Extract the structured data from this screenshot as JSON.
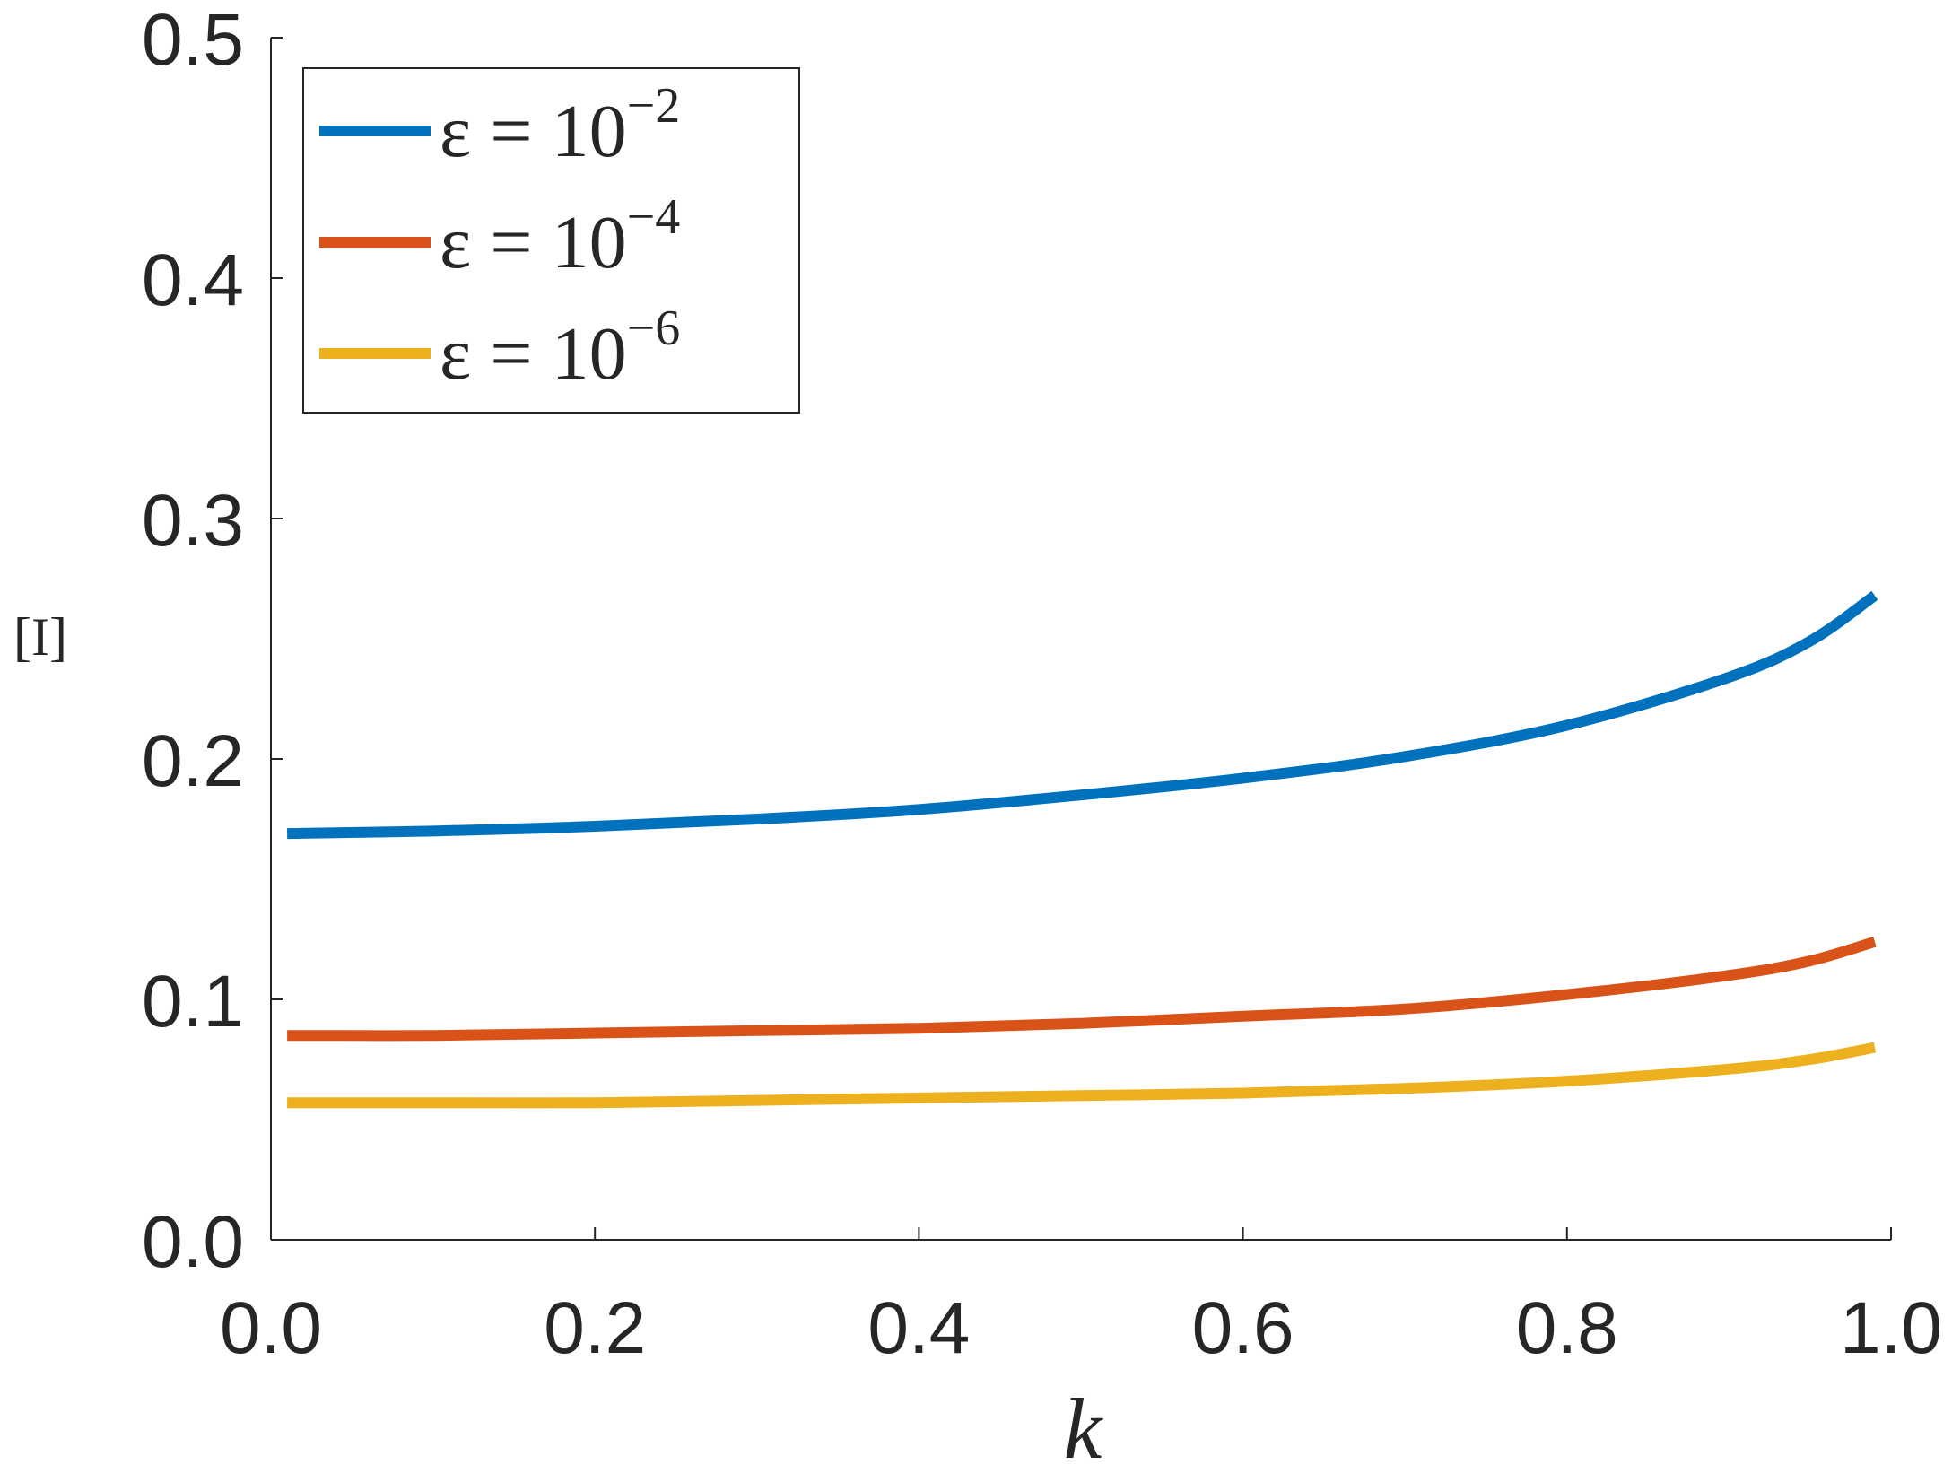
{
  "chart_data": {
    "type": "line",
    "xlabel": "k",
    "ylabel": "[I]",
    "xlim": [
      0.0,
      1.0
    ],
    "ylim": [
      0.0,
      0.5
    ],
    "xticks": [
      "0.0",
      "0.2",
      "0.4",
      "0.6",
      "0.8",
      "1.0"
    ],
    "yticks": [
      "0.0",
      "0.1",
      "0.2",
      "0.3",
      "0.4",
      "0.5"
    ],
    "grid": false,
    "legend_position": "top-left",
    "x": [
      0.01,
      0.1,
      0.2,
      0.3,
      0.4,
      0.5,
      0.6,
      0.7,
      0.8,
      0.9,
      0.95,
      0.99
    ],
    "series": [
      {
        "name": "ε = 10^-2",
        "label_prefix": "ε = 10",
        "label_exponent": "−2",
        "color": "#0072BD",
        "values": [
          0.169,
          0.17,
          0.172,
          0.175,
          0.179,
          0.185,
          0.192,
          0.201,
          0.214,
          0.234,
          0.249,
          0.268
        ]
      },
      {
        "name": "ε = 10^-4",
        "label_prefix": "ε = 10",
        "label_exponent": "−4",
        "color": "#D95319",
        "values": [
          0.085,
          0.085,
          0.086,
          0.087,
          0.088,
          0.09,
          0.093,
          0.096,
          0.102,
          0.11,
          0.116,
          0.124
        ]
      },
      {
        "name": "ε = 10^-6",
        "label_prefix": "ε = 10",
        "label_exponent": "−6",
        "color": "#EDB120",
        "values": [
          0.057,
          0.057,
          0.057,
          0.058,
          0.059,
          0.06,
          0.061,
          0.063,
          0.066,
          0.071,
          0.075,
          0.08
        ]
      }
    ]
  }
}
